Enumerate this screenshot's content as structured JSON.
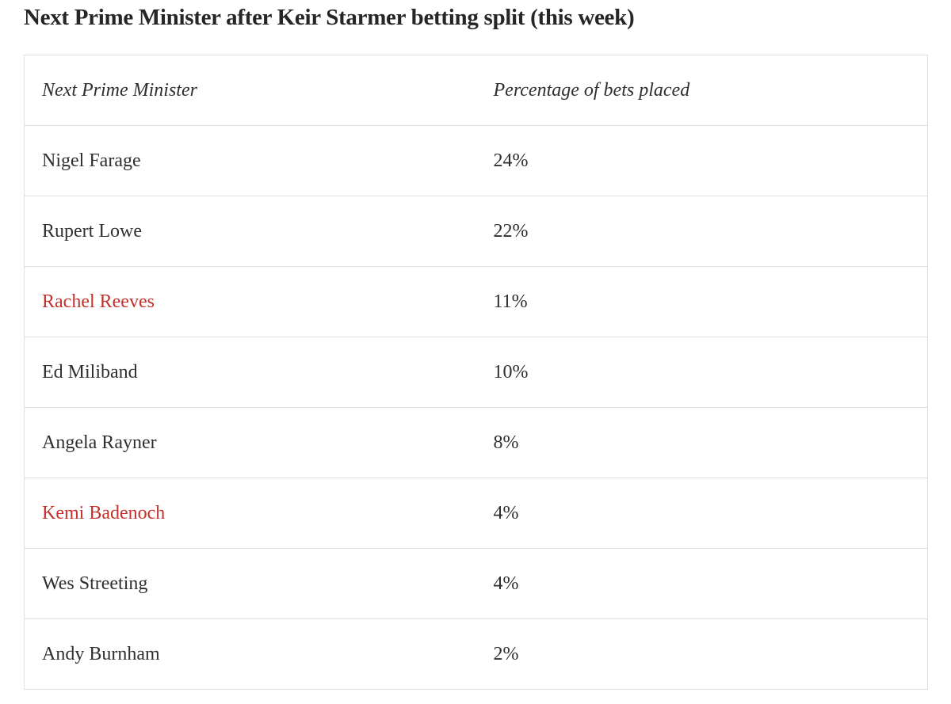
{
  "page": {
    "title": "Next Prime Minister after Keir Starmer betting split (this week)"
  },
  "colors": {
    "text": "#2f2f2f",
    "link_red": "#c2312b",
    "border": "#e0e0e0",
    "background": "#ffffff"
  },
  "table": {
    "columns": {
      "name": "Next Prime Minister",
      "value": "Percentage of bets placed"
    },
    "rows": [
      {
        "name": "Nigel Farage",
        "value": "24%",
        "link": false
      },
      {
        "name": "Rupert Lowe",
        "value": "22%",
        "link": false
      },
      {
        "name": "Rachel Reeves",
        "value": "11%",
        "link": true
      },
      {
        "name": "Ed Miliband",
        "value": "10%",
        "link": false
      },
      {
        "name": "Angela Rayner",
        "value": "8%",
        "link": false
      },
      {
        "name": "Kemi Badenoch",
        "value": "4%",
        "link": true
      },
      {
        "name": "Wes Streeting",
        "value": "4%",
        "link": false
      },
      {
        "name": "Andy Burnham",
        "value": "2%",
        "link": false
      }
    ]
  },
  "chart_data": {
    "type": "table",
    "title": "Next Prime Minister after Keir Starmer betting split (this week)",
    "columns": [
      "Next Prime Minister",
      "Percentage of bets placed"
    ],
    "categories": [
      "Nigel Farage",
      "Rupert Lowe",
      "Rachel Reeves",
      "Ed Miliband",
      "Angela Rayner",
      "Kemi Badenoch",
      "Wes Streeting",
      "Andy Burnham"
    ],
    "values": [
      24,
      22,
      11,
      10,
      8,
      4,
      4,
      2
    ],
    "unit": "%"
  }
}
